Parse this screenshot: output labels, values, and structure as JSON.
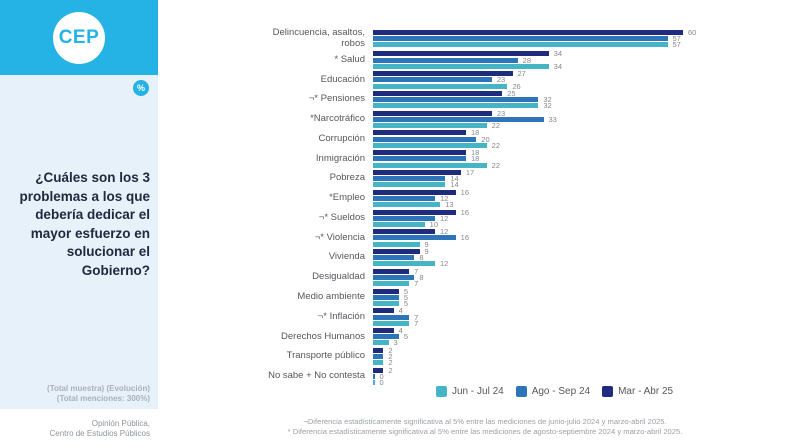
{
  "sidebar": {
    "logo_text": "CEP",
    "percent_badge": "%",
    "question": "¿Cuáles son los 3 problemas a los que debería dedicar el mayor esfuerzo en solucionar el Gobierno?",
    "totals_line1": "(Total muestra) (Evolución)",
    "totals_line2": "(Total menciones: 300%)",
    "credit_line1": "Opinión Pública,",
    "credit_line2": "Centro de Estudios Públicos"
  },
  "colors": {
    "header_cyan": "#25B2E5",
    "panel_blue": "#E7F1FA",
    "series_jun_jul": "#45B4C4",
    "series_ago_sep": "#2E74B9",
    "series_mar_abr": "#1F2C7E",
    "question_text": "#212840"
  },
  "chart_data": {
    "type": "bar",
    "orientation": "horizontal",
    "title": "",
    "xlabel": "",
    "ylabel": "",
    "xmax": 60,
    "grid": false,
    "legend_position": "bottom",
    "categories": [
      "Delincuencia, asaltos, robos",
      "* Salud",
      "Educación",
      "¬* Pensiones",
      "*Narcotráfico",
      "Corrupción",
      "Inmigración",
      "Pobreza",
      "*Empleo",
      "¬* Sueldos",
      "¬* Violencia",
      "Vivienda",
      "Desigualdad",
      "Medio ambiente",
      "¬* Inflación",
      "Derechos Humanos",
      "Transporte público",
      "No sabe + No contesta"
    ],
    "series": [
      {
        "name": "Mar - Abr 25",
        "key": "mar-abr-25",
        "color_key": "series_mar_abr",
        "values": [
          60,
          34,
          27,
          25,
          23,
          18,
          18,
          17,
          16,
          16,
          12,
          9,
          7,
          5,
          4,
          4,
          2,
          2
        ]
      },
      {
        "name": "Ago - Sep 24",
        "key": "ago-sep-24",
        "color_key": "series_ago_sep",
        "values": [
          57,
          28,
          23,
          32,
          33,
          20,
          18,
          14,
          12,
          12,
          16,
          8,
          8,
          5,
          7,
          5,
          2,
          0
        ]
      },
      {
        "name": "Jun - Jul 24",
        "key": "jun-jul-24",
        "color_key": "series_jun_jul",
        "values": [
          57,
          34,
          26,
          32,
          22,
          22,
          22,
          14,
          13,
          10,
          9,
          12,
          7,
          5,
          7,
          3,
          2,
          0
        ]
      }
    ],
    "legend": [
      {
        "label": "Jun - Jul 24",
        "color_key": "series_jun_jul"
      },
      {
        "label": "Ago - Sep 24",
        "color_key": "series_ago_sep"
      },
      {
        "label": "Mar - Abr 25",
        "color_key": "series_mar_abr"
      }
    ]
  },
  "footnotes": {
    "line1": "¬Diferencia estadísticamente significativa al 5% entre las mediciones de junio-julio 2024 y marzo-abril 2025.",
    "line2": "* Diferencia estadísticamente significativa al 5% entre las mediciones de agosto-septiembre 2024 y marzo-abril 2025."
  }
}
